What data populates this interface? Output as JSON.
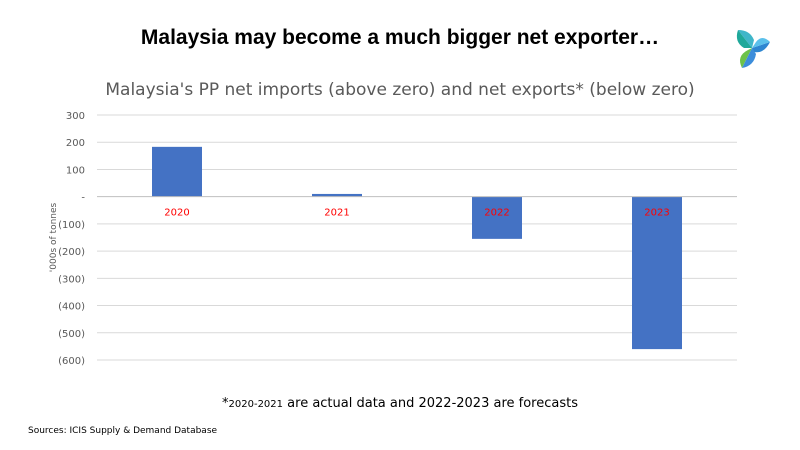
{
  "slide": {
    "title": "Malaysia may become a much bigger net exporter…",
    "footnote_mark": "*",
    "footnote_years": "2020-2021",
    "footnote_text": " are actual data and 2022-2023 are forecasts",
    "sources": "Sources: ICIS Supply & Demand Database",
    "logo_icon": "icis-logo-icon"
  },
  "chart_data": {
    "type": "bar",
    "title": "Malaysia's PP net imports (above zero) and net exports* (below zero)",
    "ylabel": "'000s of tonnes",
    "categories": [
      "2020",
      "2021",
      "2022",
      "2023"
    ],
    "values": [
      183,
      10,
      -155,
      -560
    ],
    "ylim": [
      -600,
      300
    ],
    "yticks": [
      300,
      200,
      100,
      0,
      -100,
      -200,
      -300,
      -400,
      -500,
      -600
    ],
    "ytick_labels": [
      "300",
      "200",
      "100",
      "-",
      "(100)",
      "(200)",
      "(300)",
      "(400)",
      "(500)",
      "(600)"
    ],
    "grid": true,
    "bar_color": "#4472C4",
    "category_label_color": "#FF0000",
    "gridline_color": "#D9D9D9"
  }
}
